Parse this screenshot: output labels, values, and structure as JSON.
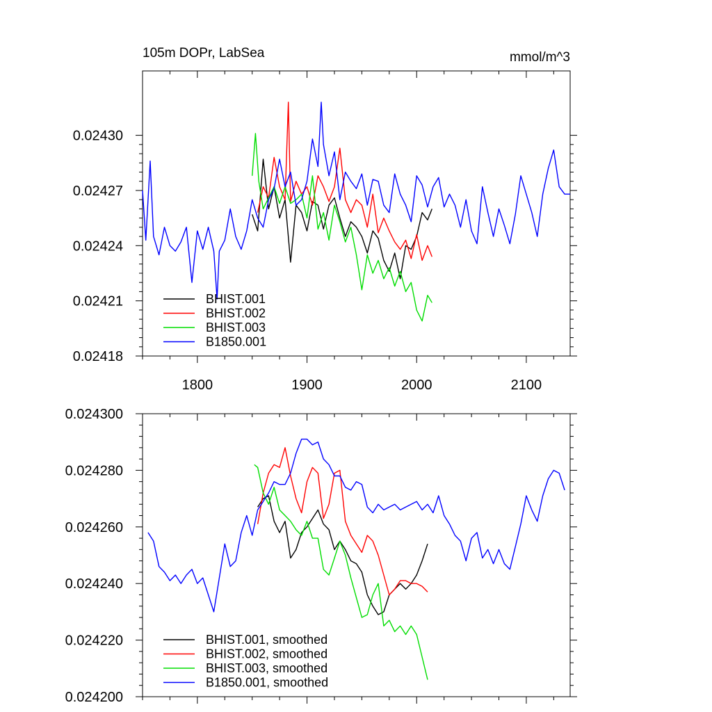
{
  "chart_data": [
    {
      "type": "line",
      "title_left": "105m DOPr, LabSea",
      "title_right": "mmol/m^3",
      "xlim": [
        1750,
        2140
      ],
      "ylim": [
        0.02418,
        0.024335
      ],
      "x_ticks": [
        1800,
        1900,
        2000,
        2100
      ],
      "x_tick_labels": [
        "1800",
        "1900",
        "2000",
        "2100"
      ],
      "y_ticks": [
        0.02418,
        0.02421,
        0.02424,
        0.02427,
        0.0243
      ],
      "y_tick_labels": [
        "0.02418",
        "0.02421",
        "0.02424",
        "0.02427",
        "0.02430"
      ],
      "legend_position": "bottom-left",
      "series": [
        {
          "name": "BHIST.001",
          "color": "#000000",
          "x": [
            1850,
            1855,
            1860,
            1865,
            1870,
            1875,
            1880,
            1885,
            1890,
            1895,
            1900,
            1905,
            1910,
            1915,
            1920,
            1925,
            1930,
            1935,
            1940,
            1945,
            1950,
            1955,
            1960,
            1965,
            1970,
            1975,
            1980,
            1985,
            1990,
            1995,
            2000,
            2005,
            2010,
            2014
          ],
          "y": [
            0.024257,
            0.024248,
            0.024287,
            0.02426,
            0.024272,
            0.024255,
            0.024265,
            0.024231,
            0.024262,
            0.024258,
            0.024248,
            0.024264,
            0.024262,
            0.024249,
            0.024262,
            0.024266,
            0.024255,
            0.024245,
            0.024253,
            0.02425,
            0.024245,
            0.024236,
            0.024248,
            0.024244,
            0.024232,
            0.024226,
            0.024236,
            0.024222,
            0.02424,
            0.024238,
            0.024245,
            0.024258,
            0.024254,
            0.02426
          ]
        },
        {
          "name": "BHIST.002",
          "color": "#ff0000",
          "x": [
            1855,
            1860,
            1865,
            1870,
            1875,
            1880,
            1883,
            1885,
            1890,
            1895,
            1900,
            1905,
            1910,
            1915,
            1920,
            1925,
            1930,
            1935,
            1940,
            1945,
            1950,
            1955,
            1960,
            1965,
            1970,
            1975,
            1980,
            1985,
            1990,
            1995,
            2000,
            2005,
            2010,
            2014
          ],
          "y": [
            0.024258,
            0.024272,
            0.024266,
            0.024288,
            0.024272,
            0.024265,
            0.024318,
            0.024264,
            0.024275,
            0.024268,
            0.024272,
            0.024262,
            0.024278,
            0.024272,
            0.024264,
            0.024272,
            0.024293,
            0.024265,
            0.024258,
            0.024265,
            0.024262,
            0.02425,
            0.024268,
            0.024247,
            0.024255,
            0.024248,
            0.024242,
            0.024238,
            0.024243,
            0.024233,
            0.024246,
            0.024232,
            0.02424,
            0.024234
          ]
        },
        {
          "name": "BHIST.003",
          "color": "#00dd00",
          "x": [
            1850,
            1853,
            1856,
            1860,
            1865,
            1870,
            1875,
            1880,
            1885,
            1890,
            1895,
            1900,
            1905,
            1910,
            1915,
            1920,
            1925,
            1930,
            1935,
            1940,
            1945,
            1950,
            1955,
            1960,
            1965,
            1970,
            1975,
            1980,
            1985,
            1990,
            1995,
            2000,
            2005,
            2010,
            2014
          ],
          "y": [
            0.024278,
            0.024301,
            0.024275,
            0.02426,
            0.024266,
            0.024272,
            0.024263,
            0.024272,
            0.024263,
            0.024265,
            0.024268,
            0.024255,
            0.024278,
            0.024249,
            0.024258,
            0.024243,
            0.024262,
            0.024253,
            0.024242,
            0.02425,
            0.024235,
            0.024216,
            0.024235,
            0.024225,
            0.024232,
            0.024222,
            0.024228,
            0.024218,
            0.024226,
            0.024215,
            0.02422,
            0.024205,
            0.024199,
            0.024213,
            0.024209
          ]
        },
        {
          "name": "B1850.001",
          "color": "#0000ff",
          "x": [
            1750,
            1753,
            1757,
            1760,
            1765,
            1770,
            1775,
            1780,
            1785,
            1790,
            1795,
            1800,
            1805,
            1810,
            1815,
            1818,
            1820,
            1825,
            1830,
            1835,
            1840,
            1845,
            1850,
            1855,
            1860,
            1865,
            1870,
            1875,
            1880,
            1885,
            1890,
            1895,
            1900,
            1905,
            1910,
            1913,
            1915,
            1920,
            1925,
            1930,
            1935,
            1940,
            1945,
            1950,
            1955,
            1960,
            1965,
            1970,
            1975,
            1980,
            1985,
            1990,
            1995,
            2000,
            2005,
            2010,
            2015,
            2020,
            2025,
            2030,
            2035,
            2040,
            2045,
            2050,
            2055,
            2060,
            2065,
            2070,
            2075,
            2080,
            2085,
            2090,
            2095,
            2100,
            2105,
            2110,
            2115,
            2120,
            2125,
            2130,
            2135,
            2140
          ],
          "y": [
            0.02427,
            0.024243,
            0.024286,
            0.024245,
            0.024235,
            0.02425,
            0.02424,
            0.024237,
            0.024242,
            0.02425,
            0.02422,
            0.024248,
            0.024238,
            0.02425,
            0.024237,
            0.024211,
            0.024237,
            0.024243,
            0.02426,
            0.024245,
            0.024238,
            0.024248,
            0.024265,
            0.024255,
            0.02425,
            0.024265,
            0.024271,
            0.024287,
            0.024272,
            0.02428,
            0.024262,
            0.024265,
            0.024275,
            0.024298,
            0.024283,
            0.024318,
            0.024295,
            0.024278,
            0.024291,
            0.024265,
            0.02428,
            0.024275,
            0.024271,
            0.024279,
            0.024262,
            0.024276,
            0.024275,
            0.024262,
            0.024258,
            0.024279,
            0.024268,
            0.024262,
            0.024253,
            0.024278,
            0.024273,
            0.024261,
            0.024272,
            0.024277,
            0.024261,
            0.024268,
            0.024262,
            0.02425,
            0.024265,
            0.024248,
            0.024241,
            0.024272,
            0.024258,
            0.024245,
            0.02426,
            0.024251,
            0.024241,
            0.024257,
            0.024278,
            0.024268,
            0.024258,
            0.024245,
            0.024268,
            0.024282,
            0.024292,
            0.024272,
            0.024268,
            0.024268
          ]
        }
      ]
    },
    {
      "type": "line",
      "xlim": [
        1750,
        2140
      ],
      "ylim": [
        0.0242,
        0.0243
      ],
      "x_ticks": [
        1800,
        1900,
        2000,
        2100
      ],
      "y_ticks": [
        0.0242,
        0.02422,
        0.02424,
        0.02426,
        0.02428,
        0.0243
      ],
      "y_tick_labels": [
        "0.024200",
        "0.024220",
        "0.024240",
        "0.024260",
        "0.024280",
        "0.024300"
      ],
      "legend_position": "bottom-left",
      "series": [
        {
          "name": "BHIST.001, smoothed",
          "color": "#000000",
          "x": [
            1855,
            1860,
            1865,
            1870,
            1875,
            1880,
            1885,
            1890,
            1895,
            1900,
            1905,
            1910,
            1915,
            1920,
            1925,
            1930,
            1935,
            1940,
            1945,
            1950,
            1955,
            1960,
            1965,
            1970,
            1975,
            1980,
            1985,
            1990,
            1995,
            2000,
            2005,
            2010
          ],
          "y": [
            0.024267,
            0.02427,
            0.024271,
            0.024262,
            0.024258,
            0.024262,
            0.024249,
            0.024252,
            0.024258,
            0.02426,
            0.024263,
            0.024266,
            0.024261,
            0.024259,
            0.024252,
            0.024255,
            0.024252,
            0.024248,
            0.024247,
            0.024244,
            0.024236,
            0.024232,
            0.024229,
            0.02423,
            0.024236,
            0.024238,
            0.02424,
            0.024238,
            0.02424,
            0.024243,
            0.024248,
            0.024254
          ]
        },
        {
          "name": "BHIST.002, smoothed",
          "color": "#ff0000",
          "x": [
            1855,
            1860,
            1865,
            1870,
            1875,
            1880,
            1885,
            1890,
            1895,
            1900,
            1905,
            1910,
            1915,
            1920,
            1925,
            1930,
            1935,
            1940,
            1945,
            1950,
            1955,
            1960,
            1965,
            1970,
            1975,
            1980,
            1985,
            1990,
            1995,
            2000,
            2005,
            2010
          ],
          "y": [
            0.024261,
            0.024272,
            0.024279,
            0.024282,
            0.024281,
            0.024288,
            0.024278,
            0.02427,
            0.024265,
            0.024276,
            0.024281,
            0.024279,
            0.024263,
            0.024268,
            0.024279,
            0.02428,
            0.024262,
            0.024257,
            0.024254,
            0.024251,
            0.024257,
            0.024255,
            0.02425,
            0.024243,
            0.024236,
            0.024238,
            0.024241,
            0.024241,
            0.02424,
            0.02424,
            0.024239,
            0.024237
          ]
        },
        {
          "name": "BHIST.003, smoothed",
          "color": "#00dd00",
          "x": [
            1852,
            1855,
            1860,
            1865,
            1870,
            1875,
            1880,
            1885,
            1890,
            1895,
            1900,
            1905,
            1910,
            1915,
            1920,
            1925,
            1930,
            1935,
            1940,
            1945,
            1950,
            1955,
            1960,
            1965,
            1970,
            1975,
            1980,
            1985,
            1990,
            1995,
            2000,
            2005,
            2010
          ],
          "y": [
            0.024282,
            0.024281,
            0.024272,
            0.024268,
            0.024274,
            0.024266,
            0.024264,
            0.024262,
            0.024259,
            0.024257,
            0.024262,
            0.024256,
            0.024256,
            0.024245,
            0.024243,
            0.024249,
            0.024255,
            0.02425,
            0.024242,
            0.024235,
            0.024228,
            0.024229,
            0.024236,
            0.02424,
            0.024225,
            0.024227,
            0.024223,
            0.024225,
            0.024222,
            0.024225,
            0.024222,
            0.024214,
            0.024206
          ]
        },
        {
          "name": "B1850.001, smoothed",
          "color": "#0000ff",
          "x": [
            1755,
            1760,
            1765,
            1770,
            1775,
            1780,
            1785,
            1790,
            1795,
            1800,
            1805,
            1810,
            1815,
            1820,
            1825,
            1830,
            1835,
            1840,
            1845,
            1850,
            1855,
            1860,
            1865,
            1870,
            1875,
            1880,
            1885,
            1890,
            1895,
            1900,
            1905,
            1910,
            1915,
            1920,
            1925,
            1930,
            1935,
            1940,
            1945,
            1950,
            1955,
            1960,
            1965,
            1970,
            1975,
            1980,
            1985,
            1990,
            1995,
            2000,
            2005,
            2010,
            2015,
            2020,
            2025,
            2030,
            2035,
            2040,
            2045,
            2050,
            2055,
            2060,
            2065,
            2070,
            2075,
            2080,
            2085,
            2090,
            2095,
            2100,
            2105,
            2110,
            2115,
            2120,
            2125,
            2130,
            2135
          ],
          "y": [
            0.024258,
            0.024255,
            0.024246,
            0.024244,
            0.024241,
            0.024243,
            0.02424,
            0.024243,
            0.024245,
            0.02424,
            0.024242,
            0.024236,
            0.02423,
            0.024242,
            0.024254,
            0.024246,
            0.024248,
            0.024258,
            0.024264,
            0.024257,
            0.024266,
            0.024269,
            0.024272,
            0.024276,
            0.024275,
            0.024275,
            0.024279,
            0.024286,
            0.024291,
            0.024291,
            0.024289,
            0.02429,
            0.024284,
            0.024282,
            0.024278,
            0.024278,
            0.024274,
            0.024273,
            0.024276,
            0.024275,
            0.024267,
            0.024265,
            0.024268,
            0.024266,
            0.024267,
            0.024268,
            0.024266,
            0.024267,
            0.024268,
            0.024269,
            0.024266,
            0.024268,
            0.024265,
            0.024271,
            0.024264,
            0.024261,
            0.024257,
            0.024255,
            0.024248,
            0.024256,
            0.024258,
            0.024249,
            0.024252,
            0.024247,
            0.024252,
            0.024247,
            0.024245,
            0.024253,
            0.024261,
            0.024271,
            0.024266,
            0.024262,
            0.024271,
            0.024277,
            0.02428,
            0.024279,
            0.024273
          ]
        }
      ]
    }
  ]
}
